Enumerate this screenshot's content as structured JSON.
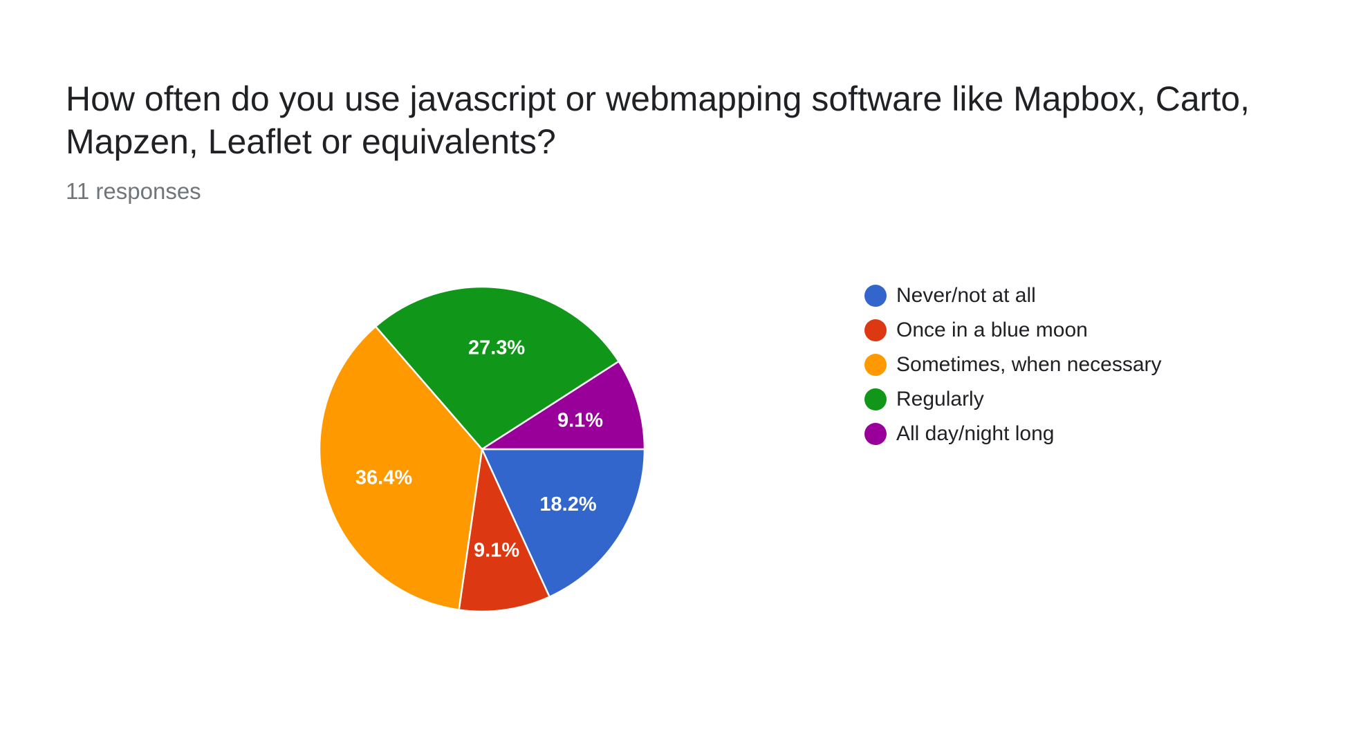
{
  "question": {
    "title": "How often do you use javascript or webmapping software like Mapbox, Carto, Mapzen, Leaflet or equivalents?",
    "responses": "11 responses"
  },
  "chart_data": {
    "type": "pie",
    "title": "",
    "legend_position": "right",
    "categories": [
      "Never/not at all",
      "Once in a blue moon",
      "Sometimes, when necessary",
      "Regularly",
      "All day/night long"
    ],
    "values": [
      18.2,
      9.1,
      36.4,
      27.3,
      9.1
    ],
    "labels": [
      "18.2%",
      "9.1%",
      "36.4%",
      "27.3%",
      "9.1%"
    ],
    "colors": [
      "#3366cc",
      "#dc3912",
      "#ff9900",
      "#109618",
      "#990099"
    ]
  }
}
